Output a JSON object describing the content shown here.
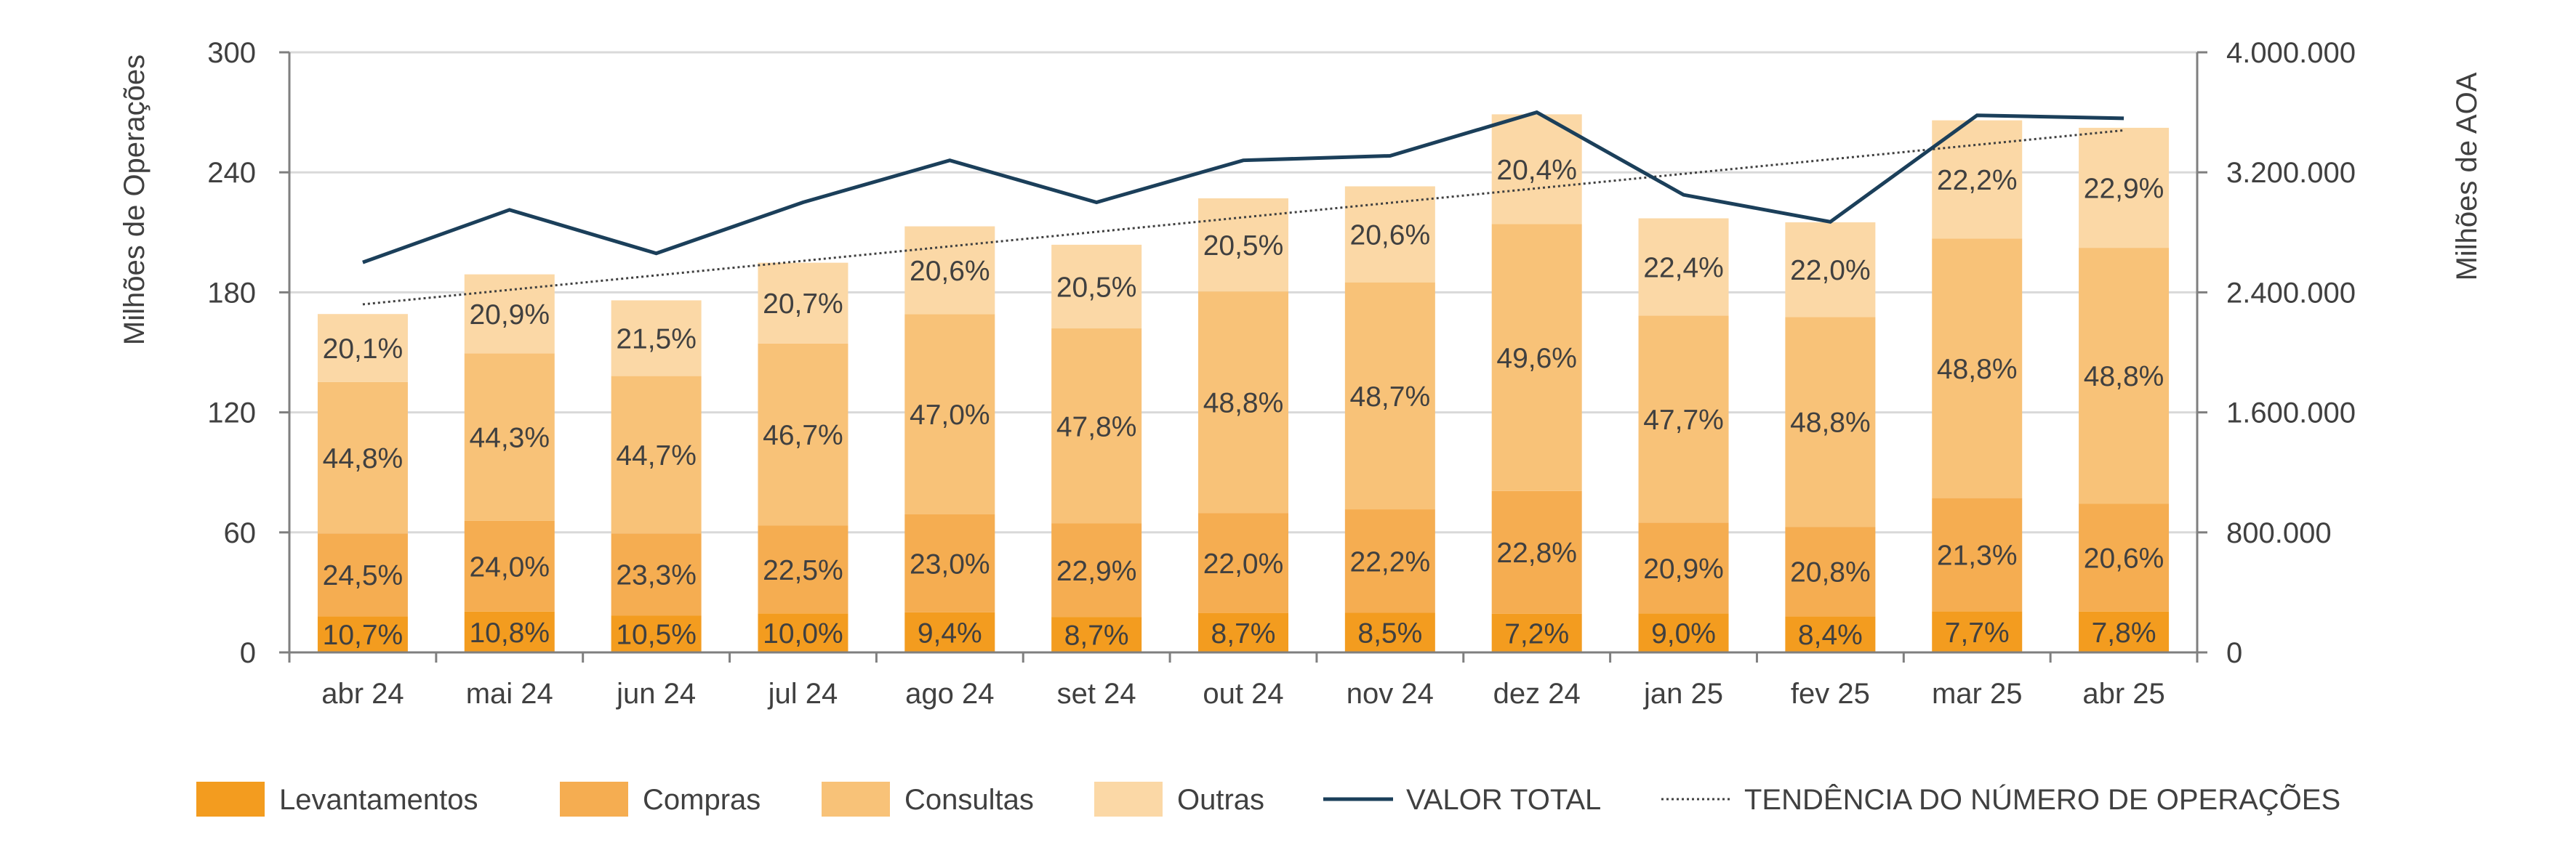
{
  "chart_data": {
    "type": "bar",
    "stacked": true,
    "categories": [
      "abr 24",
      "mai 24",
      "jun 24",
      "jul 24",
      "ago 24",
      "set 24",
      "out 24",
      "nov 24",
      "dez 24",
      "jan 25",
      "fev 25",
      "mar 25",
      "abr 25"
    ],
    "totals": [
      169,
      189,
      176,
      195,
      213,
      204,
      227,
      233,
      269,
      217,
      215,
      266,
      262
    ],
    "series": [
      {
        "name": "Levantamentos",
        "color": "#F39C1F",
        "percent_labels": [
          "10,7%",
          "10,8%",
          "10,5%",
          "10,0%",
          "9,4%",
          "8,7%",
          "8,7%",
          "8,5%",
          "7,2%",
          "9,0%",
          "8,4%",
          "7,7%",
          "7,8%"
        ],
        "percent": [
          10.7,
          10.8,
          10.5,
          10.0,
          9.4,
          8.7,
          8.7,
          8.5,
          7.2,
          9.0,
          8.4,
          7.7,
          7.8
        ]
      },
      {
        "name": "Compras",
        "color": "#F5AD51",
        "percent_labels": [
          "24,5%",
          "24,0%",
          "23,3%",
          "22,5%",
          "23,0%",
          "22,9%",
          "22,0%",
          "22,2%",
          "22,8%",
          "20,9%",
          "20,8%",
          "21,3%",
          "20,6%"
        ],
        "percent": [
          24.5,
          24.0,
          23.3,
          22.5,
          23.0,
          22.9,
          22.0,
          22.2,
          22.8,
          20.9,
          20.8,
          21.3,
          20.6
        ]
      },
      {
        "name": "Consultas",
        "color": "#F8C278",
        "percent_labels": [
          "44,8%",
          "44,3%",
          "44,7%",
          "46,7%",
          "47,0%",
          "47,8%",
          "48,8%",
          "48,7%",
          "49,6%",
          "47,7%",
          "48,8%",
          "48,8%",
          "48,8%"
        ],
        "percent": [
          44.8,
          44.3,
          44.7,
          46.7,
          47.0,
          47.8,
          48.8,
          48.7,
          49.6,
          47.7,
          48.8,
          48.8,
          48.8
        ]
      },
      {
        "name": "Outras",
        "color": "#FBD8A6",
        "percent_labels": [
          "20,1%",
          "20,9%",
          "21,5%",
          "20,7%",
          "20,6%",
          "20,5%",
          "20,5%",
          "20,6%",
          "20,4%",
          "22,4%",
          "22,0%",
          "22,2%",
          "22,9%"
        ],
        "percent": [
          20.1,
          20.9,
          21.5,
          20.7,
          20.6,
          20.5,
          20.5,
          20.6,
          20.4,
          22.4,
          22.0,
          22.2,
          22.9
        ]
      }
    ],
    "line_series": {
      "name": "VALOR TOTAL",
      "axis": "right",
      "color": "#1B3F5A",
      "values": [
        2600000,
        2950000,
        2660000,
        3000000,
        3280000,
        3000000,
        3280000,
        3310000,
        3600000,
        3050000,
        2870000,
        3580000,
        3560000
      ]
    },
    "trend_series": {
      "name": "TENDÊNCIA DO NÚMERO DE OPERAÇÕES",
      "axis": "left",
      "color": "#404040",
      "start": 174,
      "end": 261
    },
    "y_left": {
      "label": "Milhões de Operações",
      "min": 0,
      "max": 300,
      "ticks": [
        0,
        60,
        120,
        180,
        240,
        300
      ],
      "tick_labels": [
        "0",
        "60",
        "120",
        "180",
        "240",
        "300"
      ]
    },
    "y_right": {
      "label": "Milhões de AOA",
      "min": 0,
      "max": 4000000,
      "ticks": [
        0,
        800000,
        1600000,
        2400000,
        3200000,
        4000000
      ],
      "tick_labels": [
        "0",
        "800.000",
        "1.600.000",
        "2.400.000",
        "3.200.000",
        "4.000.000"
      ]
    },
    "grid": true,
    "legend_position": "bottom",
    "legend": [
      {
        "label": "Levantamentos",
        "kind": "box",
        "color": "#F39C1F"
      },
      {
        "label": "Compras",
        "kind": "box",
        "color": "#F5AD51"
      },
      {
        "label": "Consultas",
        "kind": "box",
        "color": "#F8C278"
      },
      {
        "label": "Outras",
        "kind": "box",
        "color": "#FBD8A6"
      },
      {
        "label": "VALOR TOTAL",
        "kind": "line",
        "color": "#1B3F5A"
      },
      {
        "label": "TENDÊNCIA DO NÚMERO DE OPERAÇÕES",
        "kind": "dotted",
        "color": "#404040"
      }
    ]
  },
  "colors": {
    "axis": "#7F7F7F",
    "grid": "#D9D9D9",
    "text": "#404040"
  }
}
